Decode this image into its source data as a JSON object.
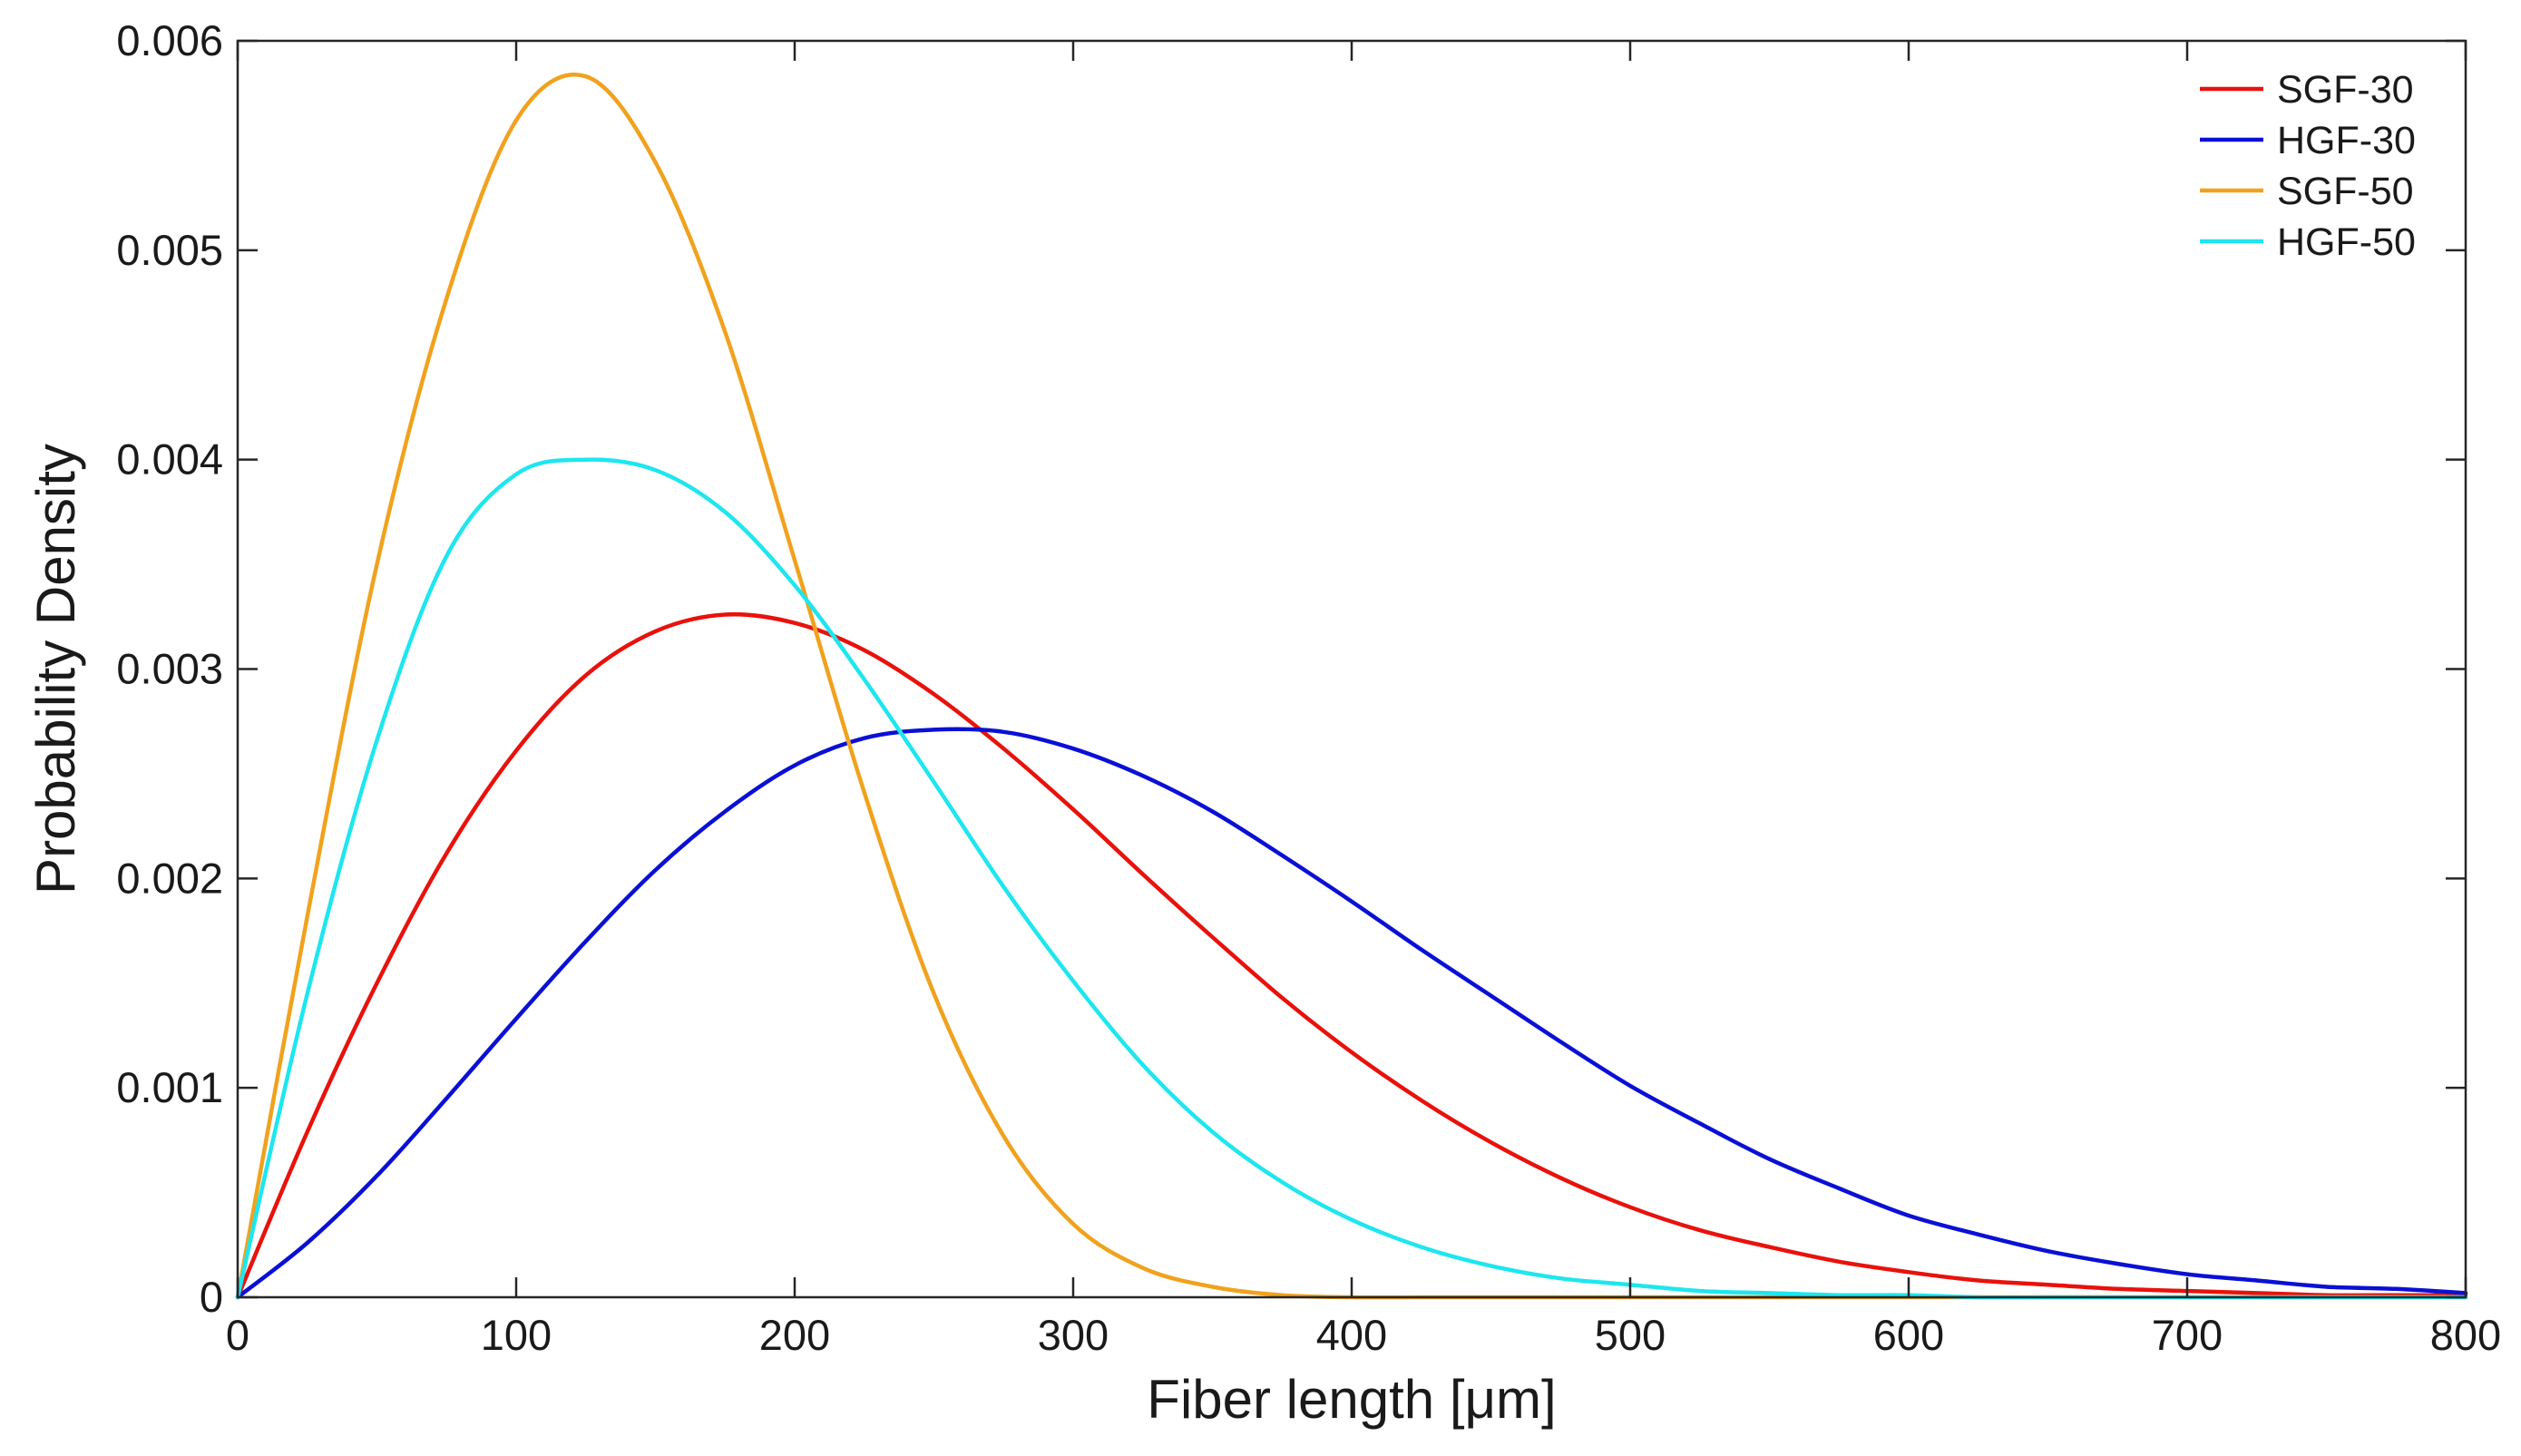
{
  "chart_data": {
    "type": "line",
    "title": "",
    "xlabel": "Fiber length [μm]",
    "ylabel": "Probability Density",
    "xlim": [
      0,
      800
    ],
    "ylim": [
      0,
      0.006
    ],
    "xticks": [
      0,
      100,
      200,
      300,
      400,
      500,
      600,
      700,
      800
    ],
    "xtick_labels": [
      "0",
      "100",
      "200",
      "300",
      "400",
      "500",
      "600",
      "700",
      "800"
    ],
    "yticks": [
      0,
      0.001,
      0.002,
      0.003,
      0.004,
      0.005,
      0.006
    ],
    "ytick_labels": [
      "0",
      "0.001",
      "0.002",
      "0.003",
      "0.004",
      "0.005",
      "0.006"
    ],
    "grid": false,
    "legend_position": "top-right",
    "x": [
      0,
      25,
      50,
      75,
      100,
      125,
      150,
      175,
      200,
      225,
      250,
      275,
      300,
      325,
      350,
      375,
      400,
      425,
      450,
      475,
      500,
      525,
      550,
      575,
      600,
      625,
      650,
      675,
      700,
      725,
      750,
      775,
      800
    ],
    "series": [
      {
        "name": "SGF-30",
        "color": "#e8120c",
        "values": [
          0,
          0.00079,
          0.0015,
          0.00212,
          0.00261,
          0.00297,
          0.00318,
          0.00326,
          0.00322,
          0.00309,
          0.00288,
          0.00262,
          0.00233,
          0.00202,
          0.00172,
          0.00143,
          0.00117,
          0.00094,
          0.00074,
          0.00057,
          0.00043,
          0.00032,
          0.00024,
          0.00017,
          0.00012,
          8e-05,
          6e-05,
          4e-05,
          3e-05,
          2e-05,
          1e-05,
          1e-05,
          1e-05
        ]
      },
      {
        "name": "HGF-30",
        "color": "#0a10d4",
        "values": [
          0,
          0.00026,
          0.00058,
          0.00095,
          0.00133,
          0.0017,
          0.00204,
          0.00232,
          0.00254,
          0.00267,
          0.00271,
          0.0027,
          0.00262,
          0.00249,
          0.00232,
          0.00211,
          0.00189,
          0.00166,
          0.00144,
          0.00122,
          0.00101,
          0.00083,
          0.00066,
          0.00052,
          0.00039,
          0.0003,
          0.00022,
          0.00016,
          0.00011,
          8e-05,
          5e-05,
          4e-05,
          2e-05
        ]
      },
      {
        "name": "SGF-50",
        "color": "#f0a21e",
        "values": [
          0,
          0.00182,
          0.0035,
          0.00477,
          0.00562,
          0.00583,
          0.00542,
          0.00461,
          0.00352,
          0.00241,
          0.00145,
          0.00077,
          0.00035,
          0.00014,
          5e-05,
          1e-05,
          0,
          0,
          0,
          0,
          0,
          0,
          0,
          0,
          0,
          0,
          0,
          0,
          0,
          0,
          0,
          0,
          0
        ]
      },
      {
        "name": "HGF-50",
        "color": "#1ee6ee",
        "values": [
          0,
          0.00145,
          0.00266,
          0.00354,
          0.00393,
          0.004,
          0.00395,
          0.00375,
          0.0034,
          0.00295,
          0.00246,
          0.00196,
          0.00151,
          0.00111,
          0.00079,
          0.00055,
          0.00037,
          0.00024,
          0.00015,
          9e-05,
          6e-05,
          3e-05,
          2e-05,
          1e-05,
          1e-05,
          0,
          0,
          0,
          0,
          0,
          0,
          0,
          0
        ]
      }
    ]
  }
}
